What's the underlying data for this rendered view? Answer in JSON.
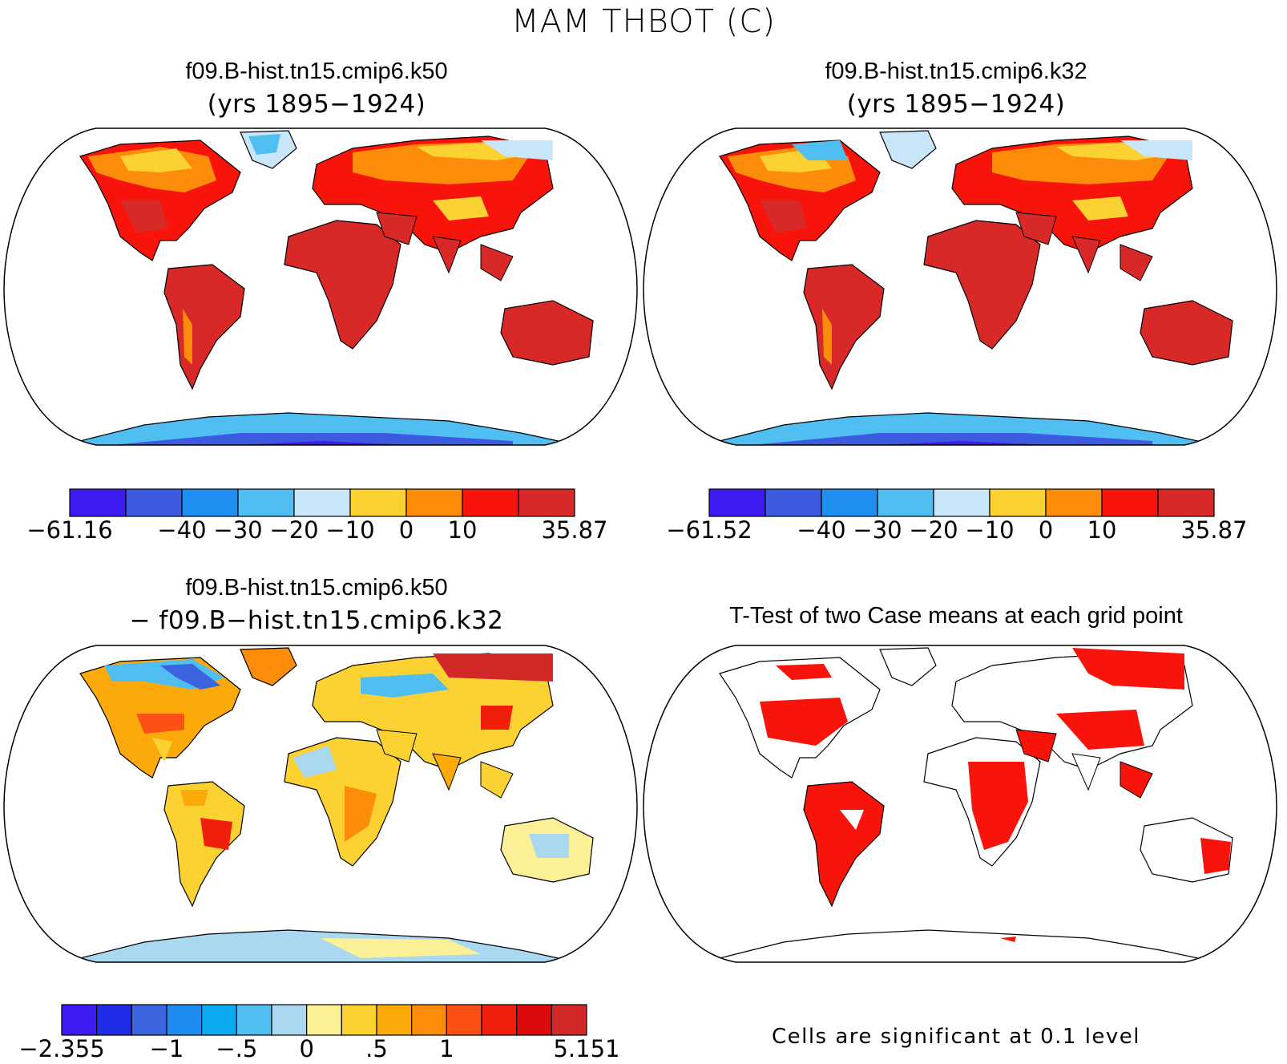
{
  "figure": {
    "title": "MAM THBOT (C)",
    "note": "Cells are significant at 0.1 level"
  },
  "panels": [
    {
      "id": "k50",
      "title": "f09.B-hist.tn15.cmip6.k50",
      "subtitle": "(yrs 1895−1924)"
    },
    {
      "id": "k32",
      "title": "f09.B-hist.tn15.cmip6.k32",
      "subtitle": "(yrs 1895−1924)"
    },
    {
      "id": "diff",
      "title": "f09.B-hist.tn15.cmip6.k50",
      "subtitle": "− f09.B−hist.tn15.cmip6.k32"
    },
    {
      "id": "ttest",
      "title": "T-Test of two Case means at each grid point",
      "subtitle": ""
    }
  ],
  "colorbars": [
    {
      "id": "cb-k50",
      "colors": [
        "#3c1cf0",
        "#3c5be0",
        "#1e8ef0",
        "#50bef0",
        "#c8e6f8",
        "#fcd232",
        "#fc8c0a",
        "#f8140a",
        "#d82828"
      ],
      "labels": [
        "−61.16",
        "−40",
        "−30",
        "−20",
        "−10",
        "0",
        "10",
        "35.87"
      ],
      "label_positions": [
        0,
        2,
        3,
        4,
        5,
        6,
        7,
        9
      ]
    },
    {
      "id": "cb-k32",
      "colors": [
        "#3c1cf0",
        "#3c5be0",
        "#1e8ef0",
        "#50bef0",
        "#c8e6f8",
        "#fcd232",
        "#fc8c0a",
        "#f8140a",
        "#d82828"
      ],
      "labels": [
        "−61.52",
        "−40",
        "−30",
        "−20",
        "−10",
        "0",
        "10",
        "35.87"
      ],
      "label_positions": [
        0,
        2,
        3,
        4,
        5,
        6,
        7,
        9
      ]
    },
    {
      "id": "cb-diff",
      "colors": [
        "#3c1cf0",
        "#1e2ce8",
        "#3c64e0",
        "#1e8cf0",
        "#0aaaf0",
        "#50bef0",
        "#aad8f0",
        "#fcf096",
        "#fcd232",
        "#fcaa0a",
        "#fc8c0a",
        "#fc5014",
        "#f01e0a",
        "#dc0a0a",
        "#d22828"
      ],
      "labels": [
        "−2.355",
        "−1",
        "−.5",
        "0",
        ".5",
        "1",
        "5.151"
      ],
      "label_positions": [
        0,
        3,
        5,
        7,
        9,
        11,
        15
      ]
    }
  ]
}
